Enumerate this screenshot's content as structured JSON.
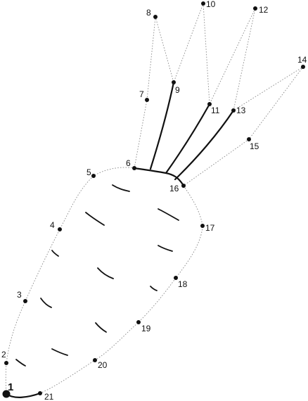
{
  "puzzle": {
    "numbers": [
      "1",
      "2",
      "3",
      "4",
      "5",
      "6",
      "7",
      "8",
      "9",
      "10",
      "11",
      "12",
      "13",
      "14",
      "15",
      "16",
      "17",
      "18",
      "19",
      "20",
      "21"
    ]
  }
}
